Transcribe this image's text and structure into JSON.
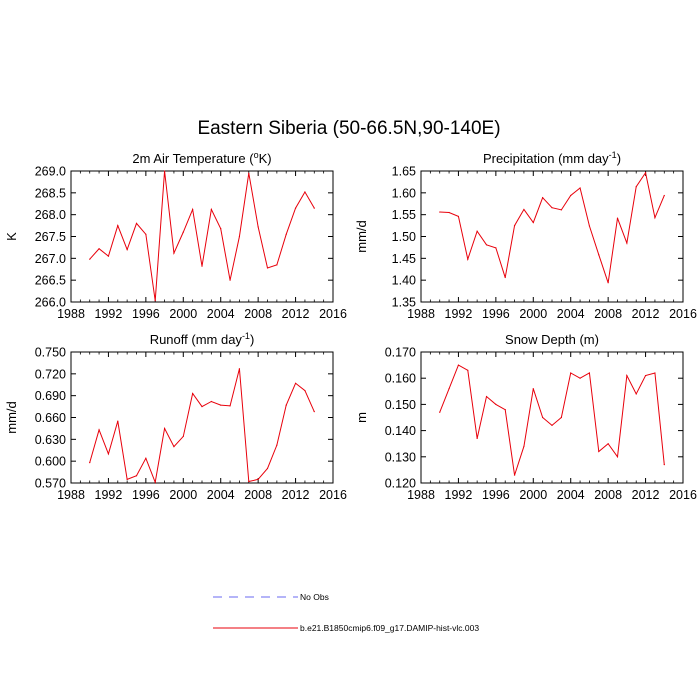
{
  "figure": {
    "title": "Eastern Siberia (50-66.5N,90-140E)"
  },
  "legend": {
    "items": [
      {
        "label": "No Obs",
        "color": "#6a6af0",
        "dash": true
      },
      {
        "label": "b.e21.B1850cmip6.f09_g17.DAMIP-hist-vlc.003",
        "color": "#e8000b",
        "dash": false
      }
    ]
  },
  "chart_data": [
    {
      "type": "line",
      "title": "2m Air Temperature (",
      "title_sup": "o",
      "title_tail": "K)",
      "ylabel": "K",
      "xlim": [
        1988,
        2016
      ],
      "ylim": [
        266.0,
        269.0
      ],
      "xticks": [
        1988,
        1992,
        1996,
        2000,
        2004,
        2008,
        2012,
        2016
      ],
      "yticks": [
        "266.0",
        "266.5",
        "267.0",
        "267.5",
        "268.0",
        "268.5",
        "269.0"
      ],
      "series": [
        {
          "color": "#e8000b",
          "x": [
            1990,
            1991,
            1992,
            1993,
            1994,
            1995,
            1996,
            1997,
            1998,
            1999,
            2000,
            2001,
            2002,
            2003,
            2004,
            2005,
            2006,
            2007,
            2008,
            2009,
            2010,
            2011,
            2012,
            2013,
            2014
          ],
          "values": [
            266.98,
            267.22,
            267.05,
            267.75,
            267.2,
            267.8,
            267.55,
            266.03,
            269.0,
            267.12,
            267.6,
            268.12,
            266.82,
            268.12,
            267.68,
            266.5,
            267.5,
            268.95,
            267.72,
            266.78,
            266.85,
            267.55,
            268.15,
            268.52,
            268.15
          ]
        }
      ]
    },
    {
      "type": "line",
      "title": "Precipitation (mm day",
      "title_sup": "-1",
      "title_tail": ")",
      "ylabel": "mm/d",
      "xlim": [
        1988,
        2016
      ],
      "ylim": [
        1.35,
        1.65
      ],
      "xticks": [
        1988,
        1992,
        1996,
        2000,
        2004,
        2008,
        2012,
        2016
      ],
      "yticks": [
        "1.35",
        "1.40",
        "1.45",
        "1.50",
        "1.55",
        "1.60",
        "1.65"
      ],
      "series": [
        {
          "color": "#e8000b",
          "x": [
            1990,
            1991,
            1992,
            1993,
            1994,
            1995,
            1996,
            1997,
            1998,
            1999,
            2000,
            2001,
            2002,
            2003,
            2004,
            2005,
            2006,
            2007,
            2008,
            2009,
            2010,
            2011,
            2012,
            2013,
            2014
          ],
          "values": [
            1.556,
            1.555,
            1.546,
            1.448,
            1.512,
            1.481,
            1.474,
            1.406,
            1.525,
            1.562,
            1.532,
            1.589,
            1.566,
            1.561,
            1.594,
            1.611,
            1.524,
            1.458,
            1.394,
            1.542,
            1.485,
            1.614,
            1.646,
            1.543,
            1.594
          ]
        }
      ]
    },
    {
      "type": "line",
      "title": "Runoff (mm day",
      "title_sup": "-1",
      "title_tail": ")",
      "ylabel": "mm/d",
      "xlim": [
        1988,
        2016
      ],
      "ylim": [
        0.57,
        0.75
      ],
      "xticks": [
        1988,
        1992,
        1996,
        2000,
        2004,
        2008,
        2012,
        2016
      ],
      "yticks": [
        "0.570",
        "0.600",
        "0.630",
        "0.660",
        "0.690",
        "0.720",
        "0.750"
      ],
      "series": [
        {
          "color": "#e8000b",
          "x": [
            1990,
            1991,
            1992,
            1993,
            1994,
            1995,
            1996,
            1997,
            1998,
            1999,
            2000,
            2001,
            2002,
            2003,
            2004,
            2005,
            2006,
            2007,
            2008,
            2009,
            2010,
            2011,
            2012,
            2013,
            2014
          ],
          "values": [
            0.598,
            0.643,
            0.61,
            0.655,
            0.575,
            0.58,
            0.604,
            0.571,
            0.645,
            0.62,
            0.634,
            0.693,
            0.675,
            0.682,
            0.677,
            0.676,
            0.727,
            0.572,
            0.575,
            0.59,
            0.622,
            0.677,
            0.707,
            0.697,
            0.668
          ]
        }
      ]
    },
    {
      "type": "line",
      "title": "Snow Depth (m)",
      "title_sup": "",
      "title_tail": "",
      "ylabel": "m",
      "xlim": [
        1988,
        2016
      ],
      "ylim": [
        0.12,
        0.17
      ],
      "xticks": [
        1988,
        1992,
        1996,
        2000,
        2004,
        2008,
        2012,
        2016
      ],
      "yticks": [
        "0.120",
        "0.130",
        "0.140",
        "0.150",
        "0.160",
        "0.170"
      ],
      "series": [
        {
          "color": "#e8000b",
          "x": [
            1990,
            1991,
            1992,
            1993,
            1994,
            1995,
            1996,
            1997,
            1998,
            1999,
            2000,
            2001,
            2002,
            2003,
            2004,
            2005,
            2006,
            2007,
            2008,
            2009,
            2010,
            2011,
            2012,
            2013,
            2014
          ],
          "values": [
            0.147,
            0.156,
            0.165,
            0.163,
            0.137,
            0.153,
            0.15,
            0.148,
            0.123,
            0.134,
            0.156,
            0.145,
            0.142,
            0.145,
            0.162,
            0.16,
            0.162,
            0.132,
            0.135,
            0.13,
            0.161,
            0.154,
            0.161,
            0.162,
            0.127
          ]
        }
      ]
    }
  ]
}
